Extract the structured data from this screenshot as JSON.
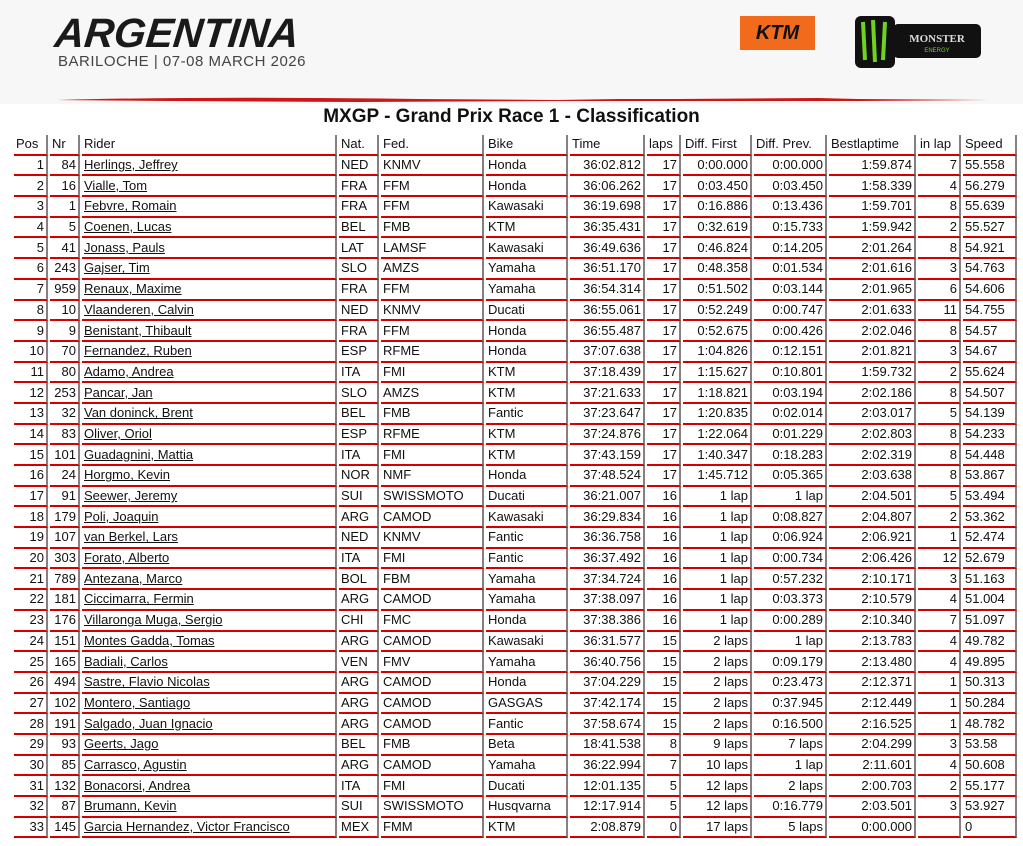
{
  "header": {
    "event_name": "ARGENTINA",
    "event_sub": "BARILOCHE | 07-08 MARCH 2026",
    "sponsor_logos": [
      "KTM",
      "MONSTER ENERGY"
    ],
    "accent_color": "#d40000"
  },
  "title": "MXGP - Grand Prix Race 1 - Classification",
  "columns": [
    "Pos",
    "Nr",
    "Rider",
    "Nat.",
    "Fed.",
    "Bike",
    "Time",
    "laps",
    "Diff. First",
    "Diff. Prev.",
    "Bestlaptime",
    "in lap",
    "Speed"
  ],
  "rows": [
    [
      "1",
      "84",
      "Herlings, Jeffrey",
      "NED",
      "KNMV",
      "Honda",
      "36:02.812",
      "17",
      "0:00.000",
      "0:00.000",
      "1:59.874",
      "7",
      "55.558"
    ],
    [
      "2",
      "16",
      "Vialle, Tom",
      "FRA",
      "FFM",
      "Honda",
      "36:06.262",
      "17",
      "0:03.450",
      "0:03.450",
      "1:58.339",
      "4",
      "56.279"
    ],
    [
      "3",
      "1",
      "Febvre, Romain",
      "FRA",
      "FFM",
      "Kawasaki",
      "36:19.698",
      "17",
      "0:16.886",
      "0:13.436",
      "1:59.701",
      "8",
      "55.639"
    ],
    [
      "4",
      "5",
      "Coenen, Lucas",
      "BEL",
      "FMB",
      "KTM",
      "36:35.431",
      "17",
      "0:32.619",
      "0:15.733",
      "1:59.942",
      "2",
      "55.527"
    ],
    [
      "5",
      "41",
      "Jonass, Pauls",
      "LAT",
      "LAMSF",
      "Kawasaki",
      "36:49.636",
      "17",
      "0:46.824",
      "0:14.205",
      "2:01.264",
      "8",
      "54.921"
    ],
    [
      "6",
      "243",
      "Gajser, Tim",
      "SLO",
      "AMZS",
      "Yamaha",
      "36:51.170",
      "17",
      "0:48.358",
      "0:01.534",
      "2:01.616",
      "3",
      "54.763"
    ],
    [
      "7",
      "959",
      "Renaux, Maxime",
      "FRA",
      "FFM",
      "Yamaha",
      "36:54.314",
      "17",
      "0:51.502",
      "0:03.144",
      "2:01.965",
      "6",
      "54.606"
    ],
    [
      "8",
      "10",
      "Vlaanderen, Calvin",
      "NED",
      "KNMV",
      "Ducati",
      "36:55.061",
      "17",
      "0:52.249",
      "0:00.747",
      "2:01.633",
      "11",
      "54.755"
    ],
    [
      "9",
      "9",
      "Benistant, Thibault",
      "FRA",
      "FFM",
      "Honda",
      "36:55.487",
      "17",
      "0:52.675",
      "0:00.426",
      "2:02.046",
      "8",
      "54.57"
    ],
    [
      "10",
      "70",
      "Fernandez, Ruben",
      "ESP",
      "RFME",
      "Honda",
      "37:07.638",
      "17",
      "1:04.826",
      "0:12.151",
      "2:01.821",
      "3",
      "54.67"
    ],
    [
      "11",
      "80",
      "Adamo, Andrea",
      "ITA",
      "FMI",
      "KTM",
      "37:18.439",
      "17",
      "1:15.627",
      "0:10.801",
      "1:59.732",
      "2",
      "55.624"
    ],
    [
      "12",
      "253",
      "Pancar, Jan",
      "SLO",
      "AMZS",
      "KTM",
      "37:21.633",
      "17",
      "1:18.821",
      "0:03.194",
      "2:02.186",
      "8",
      "54.507"
    ],
    [
      "13",
      "32",
      "Van doninck, Brent",
      "BEL",
      "FMB",
      "Fantic",
      "37:23.647",
      "17",
      "1:20.835",
      "0:02.014",
      "2:03.017",
      "5",
      "54.139"
    ],
    [
      "14",
      "83",
      "Oliver, Oriol",
      "ESP",
      "RFME",
      "KTM",
      "37:24.876",
      "17",
      "1:22.064",
      "0:01.229",
      "2:02.803",
      "8",
      "54.233"
    ],
    [
      "15",
      "101",
      "Guadagnini, Mattia",
      "ITA",
      "FMI",
      "KTM",
      "37:43.159",
      "17",
      "1:40.347",
      "0:18.283",
      "2:02.319",
      "8",
      "54.448"
    ],
    [
      "16",
      "24",
      "Horgmo, Kevin",
      "NOR",
      "NMF",
      "Honda",
      "37:48.524",
      "17",
      "1:45.712",
      "0:05.365",
      "2:03.638",
      "8",
      "53.867"
    ],
    [
      "17",
      "91",
      "Seewer, Jeremy",
      "SUI",
      "SWISSMOTO",
      "Ducati",
      "36:21.007",
      "16",
      "1 lap",
      "1 lap",
      "2:04.501",
      "5",
      "53.494"
    ],
    [
      "18",
      "179",
      "Poli, Joaquin",
      "ARG",
      "CAMOD",
      "Kawasaki",
      "36:29.834",
      "16",
      "1 lap",
      "0:08.827",
      "2:04.807",
      "2",
      "53.362"
    ],
    [
      "19",
      "107",
      "van Berkel, Lars",
      "NED",
      "KNMV",
      "Fantic",
      "36:36.758",
      "16",
      "1 lap",
      "0:06.924",
      "2:06.921",
      "1",
      "52.474"
    ],
    [
      "20",
      "303",
      "Forato, Alberto",
      "ITA",
      "FMI",
      "Fantic",
      "36:37.492",
      "16",
      "1 lap",
      "0:00.734",
      "2:06.426",
      "12",
      "52.679"
    ],
    [
      "21",
      "789",
      "Antezana, Marco",
      "BOL",
      "FBM",
      "Yamaha",
      "37:34.724",
      "16",
      "1 lap",
      "0:57.232",
      "2:10.171",
      "3",
      "51.163"
    ],
    [
      "22",
      "181",
      "Ciccimarra, Fermin",
      "ARG",
      "CAMOD",
      "Yamaha",
      "37:38.097",
      "16",
      "1 lap",
      "0:03.373",
      "2:10.579",
      "4",
      "51.004"
    ],
    [
      "23",
      "176",
      "Villaronga Muga, Sergio",
      "CHI",
      "FMC",
      "Honda",
      "37:38.386",
      "16",
      "1 lap",
      "0:00.289",
      "2:10.340",
      "7",
      "51.097"
    ],
    [
      "24",
      "151",
      "Montes Gadda, Tomas",
      "ARG",
      "CAMOD",
      "Kawasaki",
      "36:31.577",
      "15",
      "2 laps",
      "1 lap",
      "2:13.783",
      "4",
      "49.782"
    ],
    [
      "25",
      "165",
      "Badiali, Carlos",
      "VEN",
      "FMV",
      "Yamaha",
      "36:40.756",
      "15",
      "2 laps",
      "0:09.179",
      "2:13.480",
      "4",
      "49.895"
    ],
    [
      "26",
      "494",
      "Sastre, Flavio Nicolas",
      "ARG",
      "CAMOD",
      "Honda",
      "37:04.229",
      "15",
      "2 laps",
      "0:23.473",
      "2:12.371",
      "1",
      "50.313"
    ],
    [
      "27",
      "102",
      "Montero, Santiago",
      "ARG",
      "CAMOD",
      "GASGAS",
      "37:42.174",
      "15",
      "2 laps",
      "0:37.945",
      "2:12.449",
      "1",
      "50.284"
    ],
    [
      "28",
      "191",
      "Salgado, Juan Ignacio",
      "ARG",
      "CAMOD",
      "Fantic",
      "37:58.674",
      "15",
      "2 laps",
      "0:16.500",
      "2:16.525",
      "1",
      "48.782"
    ],
    [
      "29",
      "93",
      "Geerts, Jago",
      "BEL",
      "FMB",
      "Beta",
      "18:41.538",
      "8",
      "9 laps",
      "7 laps",
      "2:04.299",
      "3",
      "53.58"
    ],
    [
      "30",
      "85",
      "Carrasco, Agustin",
      "ARG",
      "CAMOD",
      "Yamaha",
      "36:22.994",
      "7",
      "10 laps",
      "1 lap",
      "2:11.601",
      "4",
      "50.608"
    ],
    [
      "31",
      "132",
      "Bonacorsi, Andrea",
      "ITA",
      "FMI",
      "Ducati",
      "12:01.135",
      "5",
      "12 laps",
      "2 laps",
      "2:00.703",
      "2",
      "55.177"
    ],
    [
      "32",
      "87",
      "Brumann, Kevin",
      "SUI",
      "SWISSMOTO",
      "Husqvarna",
      "12:17.914",
      "5",
      "12 laps",
      "0:16.779",
      "2:03.501",
      "3",
      "53.927"
    ],
    [
      "33",
      "145",
      "Garcia Hernandez, Victor Francisco",
      "MEX",
      "FMM",
      "KTM",
      "2:08.879",
      "0",
      "17 laps",
      "5 laps",
      "0:00.000",
      "",
      "0"
    ]
  ]
}
